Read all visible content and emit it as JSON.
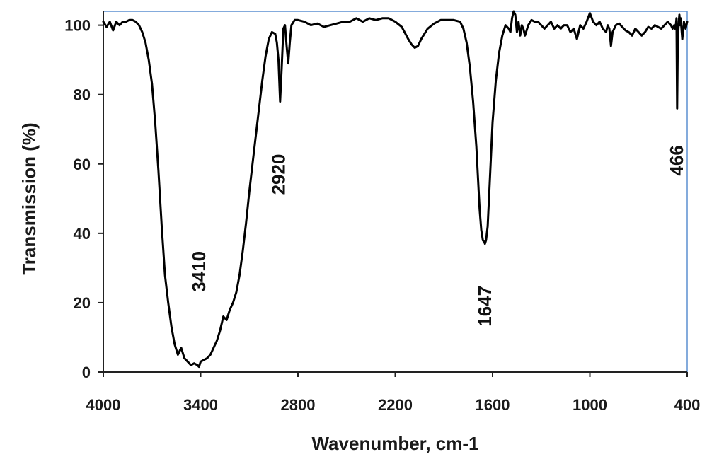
{
  "chart_data": {
    "type": "line",
    "title": "",
    "xlabel": "Wavenumber, cm-1",
    "ylabel": "Transmission (%)",
    "xlim": [
      4000,
      400
    ],
    "ylim": [
      0,
      104
    ],
    "x_reversed": true,
    "x_ticks": [
      4000,
      3400,
      2800,
      2200,
      1600,
      1000,
      400
    ],
    "y_ticks": [
      0,
      20,
      40,
      60,
      80,
      100
    ],
    "grid": false,
    "legend": "none",
    "frame_color": "#5b8fd0",
    "line_color": "#000000",
    "series": [
      {
        "x": [
          4000,
          3980,
          3960,
          3940,
          3920,
          3900,
          3880,
          3860,
          3840,
          3820,
          3800,
          3780,
          3760,
          3740,
          3720,
          3700,
          3680,
          3660,
          3640,
          3620,
          3600,
          3580,
          3560,
          3540,
          3520,
          3500,
          3480,
          3460,
          3440,
          3420,
          3410,
          3400,
          3380,
          3360,
          3340,
          3320,
          3300,
          3280,
          3260,
          3240,
          3220,
          3200,
          3180,
          3160,
          3140,
          3120,
          3100,
          3080,
          3060,
          3040,
          3020,
          3000,
          2980,
          2960,
          2940,
          2930,
          2920,
          2910,
          2900,
          2890,
          2880,
          2870,
          2860,
          2850,
          2840,
          2820,
          2800,
          2760,
          2720,
          2680,
          2640,
          2600,
          2560,
          2520,
          2480,
          2440,
          2400,
          2360,
          2320,
          2280,
          2240,
          2200,
          2160,
          2120,
          2100,
          2080,
          2060,
          2040,
          2000,
          1960,
          1920,
          1880,
          1840,
          1800,
          1780,
          1760,
          1740,
          1720,
          1700,
          1690,
          1680,
          1670,
          1660,
          1650,
          1647,
          1640,
          1630,
          1620,
          1610,
          1600,
          1580,
          1560,
          1540,
          1520,
          1500,
          1490,
          1480,
          1470,
          1460,
          1450,
          1440,
          1430,
          1420,
          1410,
          1400,
          1380,
          1360,
          1340,
          1320,
          1300,
          1280,
          1260,
          1240,
          1220,
          1200,
          1180,
          1160,
          1140,
          1120,
          1100,
          1080,
          1060,
          1040,
          1020,
          1000,
          980,
          960,
          940,
          920,
          900,
          890,
          880,
          870,
          860,
          840,
          820,
          800,
          780,
          760,
          740,
          720,
          700,
          680,
          660,
          640,
          620,
          600,
          580,
          560,
          540,
          520,
          500,
          490,
          480,
          475,
          470,
          466,
          462,
          458,
          452,
          448,
          444,
          440,
          430,
          420,
          410,
          400
        ],
        "y": [
          101,
          99.5,
          101,
          98.5,
          101,
          100,
          101,
          101,
          101.5,
          101.5,
          101,
          100,
          98,
          95,
          90,
          83,
          72,
          58,
          42,
          28,
          20,
          13,
          8,
          5,
          7,
          4,
          3,
          2,
          2.5,
          2,
          1.5,
          3,
          3.5,
          4,
          5,
          7,
          9,
          12,
          16,
          15,
          18,
          20,
          23,
          28,
          35,
          43,
          52,
          60,
          68,
          76,
          84,
          91,
          96,
          98,
          97.5,
          95,
          90,
          78,
          88,
          99,
          100,
          94,
          89,
          95,
          100,
          101.5,
          101.5,
          101,
          100,
          100.5,
          99.5,
          100,
          100.5,
          101,
          101,
          102,
          101,
          102,
          101.5,
          102,
          102,
          101,
          99.5,
          96,
          94.5,
          93.5,
          94,
          96,
          99,
          100.5,
          101.5,
          101.5,
          101.5,
          101,
          99,
          95,
          88,
          78,
          65,
          56,
          47,
          41,
          38,
          37.5,
          37,
          38,
          42,
          52,
          62,
          72,
          84,
          92,
          97,
          100,
          99,
          98,
          102,
          104,
          103,
          98,
          101,
          97,
          100,
          99,
          97,
          100,
          101.5,
          101,
          101,
          100,
          99,
          100,
          101,
          99,
          100,
          99,
          100,
          100,
          98,
          99,
          96,
          100,
          99,
          101,
          103.5,
          101,
          100,
          101,
          99,
          98,
          100,
          99,
          94,
          98,
          100,
          100.5,
          99.5,
          98.5,
          98,
          97,
          99,
          98,
          97,
          98,
          99.5,
          99,
          100,
          99.5,
          99,
          100,
          101,
          100,
          99,
          100,
          99,
          100,
          102,
          76,
          95,
          101,
          103,
          100,
          102,
          96,
          101,
          99,
          101
        ]
      }
    ],
    "annotations": [
      {
        "text": "3410",
        "x": 3410,
        "y": 29
      },
      {
        "text": "2920",
        "x": 2920,
        "y": 57
      },
      {
        "text": "1647",
        "x": 1647,
        "y": 19
      },
      {
        "text": "466",
        "x": 466,
        "y": 61
      }
    ]
  }
}
